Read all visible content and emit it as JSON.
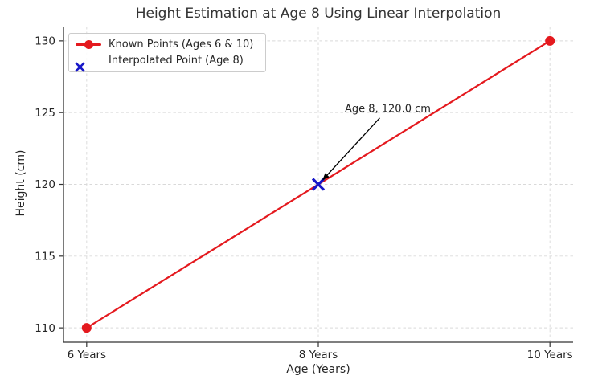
{
  "chart_data": {
    "type": "line",
    "title": "Height Estimation at Age 8 Using Linear Interpolation",
    "xlabel": "Age (Years)",
    "ylabel": "Height (cm)",
    "xlim": [
      5.8,
      10.2
    ],
    "ylim": [
      109,
      131
    ],
    "grid": {
      "show": true,
      "style": "dashed",
      "color": "#d9d9d9"
    },
    "legend_position": "upper left",
    "x_ticks": [
      {
        "value": 6,
        "label": "6 Years"
      },
      {
        "value": 8,
        "label": "8 Years"
      },
      {
        "value": 10,
        "label": "10 Years"
      }
    ],
    "y_ticks": [
      {
        "value": 110,
        "label": "110"
      },
      {
        "value": 115,
        "label": "115"
      },
      {
        "value": 120,
        "label": "120"
      },
      {
        "value": 125,
        "label": "125"
      },
      {
        "value": 130,
        "label": "130"
      }
    ],
    "series": [
      {
        "name": "Known Points (Ages 6 & 10)",
        "marker": "circle",
        "line": true,
        "color": "#e4191e",
        "x": [
          6,
          10
        ],
        "y": [
          110,
          130
        ]
      },
      {
        "name": "Interpolated Point (Age 8)",
        "marker": "x",
        "line": false,
        "color": "#1717c8",
        "x": [
          8
        ],
        "y": [
          120
        ]
      }
    ],
    "annotation": {
      "text": "Age 8, 120.0 cm",
      "target": [
        8,
        120
      ],
      "text_center": [
        8.6,
        125.3
      ],
      "arrow_color": "#000000"
    }
  },
  "colors": {
    "axis": "#333333",
    "tick_text": "#262626",
    "grid": "#d9d9d9",
    "background": "#ffffff",
    "known_red": "#e4191e",
    "interpolated_blue": "#1717c8"
  }
}
